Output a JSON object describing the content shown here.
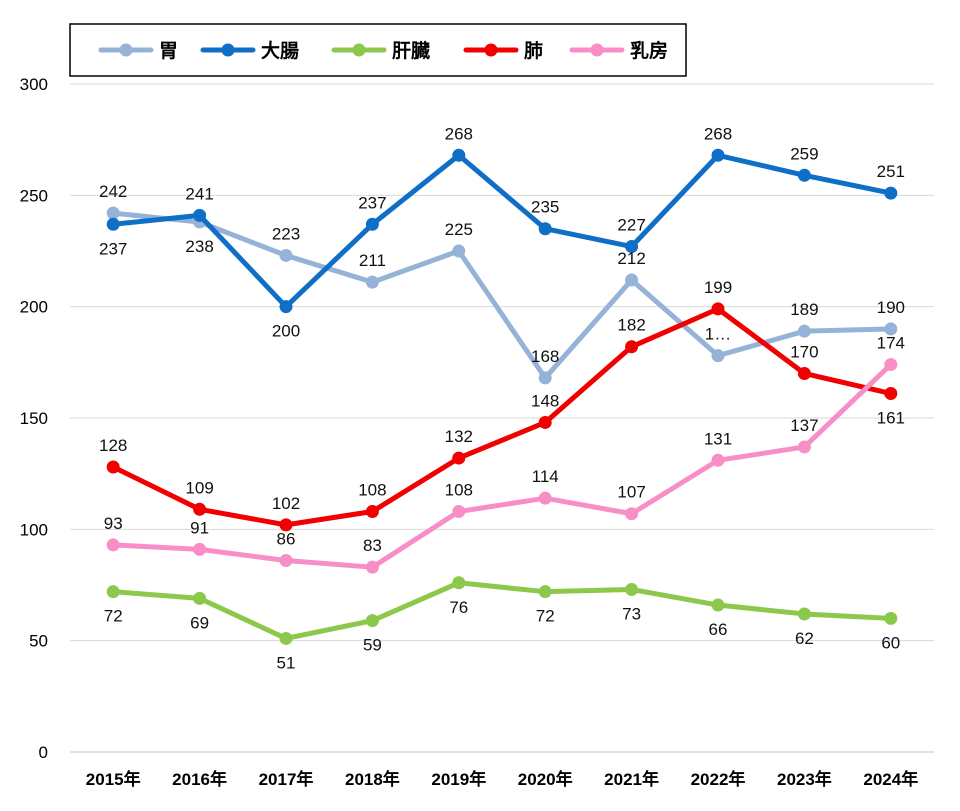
{
  "chart_data": {
    "type": "line",
    "title": "",
    "xlabel": "",
    "ylabel": "",
    "ylim": [
      0,
      300
    ],
    "yticks": [
      0,
      50,
      100,
      150,
      200,
      250,
      300
    ],
    "grid": true,
    "legend_position": "top-left",
    "categories": [
      "2015年",
      "2016年",
      "2017年",
      "2018年",
      "2019年",
      "2020年",
      "2021年",
      "2022年",
      "2023年",
      "2024年"
    ],
    "series": [
      {
        "name": "胃",
        "color": "#95B3D7",
        "values": [
          242,
          238,
          223,
          211,
          225,
          168,
          212,
          178,
          189,
          190
        ],
        "labels": [
          "242",
          "238",
          "223",
          "211",
          "225",
          "168",
          "212",
          "1…",
          "189",
          "190"
        ],
        "label_pos": [
          "above",
          "below",
          "above",
          "above",
          "above",
          "above",
          "above",
          "above",
          "above",
          "above"
        ]
      },
      {
        "name": "大腸",
        "color": "#0F6FC6",
        "values": [
          237,
          241,
          200,
          237,
          268,
          235,
          227,
          268,
          259,
          251
        ],
        "labels": [
          "237",
          "241",
          "200",
          "237",
          "268",
          "235",
          "227",
          "268",
          "259",
          "251"
        ],
        "label_pos": [
          "below",
          "above",
          "below",
          "above",
          "above",
          "above",
          "above",
          "above",
          "above",
          "above"
        ]
      },
      {
        "name": "肝臓",
        "color": "#8CC84B",
        "values": [
          72,
          69,
          51,
          59,
          76,
          72,
          73,
          66,
          62,
          60
        ],
        "labels": [
          "72",
          "69",
          "51",
          "59",
          "76",
          "72",
          "73",
          "66",
          "62",
          "60"
        ],
        "label_pos": [
          "below",
          "below",
          "below",
          "below",
          "below",
          "below",
          "below",
          "below",
          "below",
          "below"
        ]
      },
      {
        "name": "肺",
        "color": "#F00000",
        "values": [
          128,
          109,
          102,
          108,
          132,
          148,
          182,
          199,
          170,
          161
        ],
        "labels": [
          "128",
          "109",
          "102",
          "108",
          "132",
          "148",
          "182",
          "199",
          "170",
          "161"
        ],
        "label_pos": [
          "above",
          "above",
          "above",
          "above",
          "above",
          "above",
          "above",
          "above",
          "above",
          "below"
        ]
      },
      {
        "name": "乳房",
        "color": "#F78FC6",
        "values": [
          93,
          91,
          86,
          83,
          108,
          114,
          107,
          131,
          137,
          174
        ],
        "labels": [
          "93",
          "91",
          "86",
          "83",
          "108",
          "114",
          "107",
          "131",
          "137",
          "174"
        ],
        "label_pos": [
          "above",
          "above",
          "above",
          "above",
          "above",
          "above",
          "above",
          "above",
          "above",
          "above"
        ]
      }
    ]
  }
}
